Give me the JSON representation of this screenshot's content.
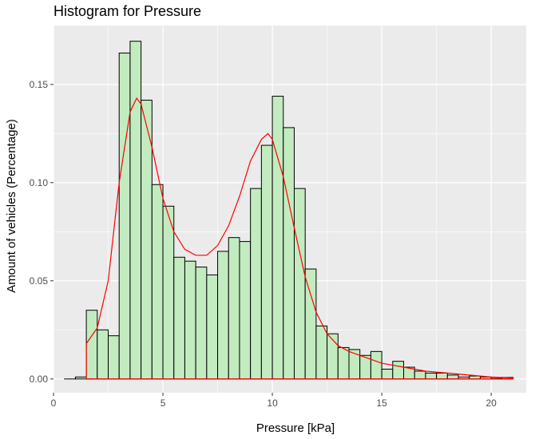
{
  "chart_data": {
    "type": "bar",
    "title": "Histogram for Pressure",
    "xlabel": "Pressure [kPa]",
    "ylabel": "Amount of vehicles (Percentage)",
    "xlim": [
      0,
      21.6
    ],
    "ylim": [
      -0.007,
      0.18
    ],
    "x_ticks": [
      0,
      5,
      10,
      15,
      20
    ],
    "x_tick_labels": [
      "0",
      "5",
      "10",
      "15",
      "20"
    ],
    "y_ticks": [
      0,
      0.05,
      0.1,
      0.15
    ],
    "y_tick_labels": [
      "0.00",
      "0.05",
      "0.10",
      "0.15"
    ],
    "grid": true,
    "bin_width": 0.5,
    "bin_left_edges": [
      0.5,
      1.0,
      1.5,
      2.0,
      2.5,
      3.0,
      3.5,
      4.0,
      4.5,
      5.0,
      5.5,
      6.0,
      6.5,
      7.0,
      7.5,
      8.0,
      8.5,
      9.0,
      9.5,
      10.0,
      10.5,
      11.0,
      11.5,
      12.0,
      12.5,
      13.0,
      13.5,
      14.0,
      14.5,
      15.0,
      15.5,
      16.0,
      16.5,
      17.0,
      17.5,
      18.0,
      18.5,
      19.0,
      19.5,
      20.0,
      20.5
    ],
    "values": [
      0.0,
      0.001,
      0.035,
      0.025,
      0.022,
      0.166,
      0.172,
      0.142,
      0.099,
      0.088,
      0.062,
      0.06,
      0.057,
      0.053,
      0.065,
      0.072,
      0.07,
      0.097,
      0.119,
      0.144,
      0.128,
      0.097,
      0.056,
      0.027,
      0.023,
      0.016,
      0.015,
      0.012,
      0.014,
      0.005,
      0.009,
      0.006,
      0.004,
      0.003,
      0.003,
      0.002,
      0.001,
      0.0015,
      0.001,
      0.0003,
      0.0008
    ],
    "density_curve": {
      "color": "#ff0000",
      "x": [
        1.5,
        2.0,
        2.5,
        3.0,
        3.5,
        3.8,
        4.0,
        4.5,
        5.0,
        5.5,
        6.0,
        6.5,
        7.0,
        7.5,
        8.0,
        8.5,
        9.0,
        9.5,
        9.8,
        10.0,
        10.5,
        11.0,
        11.5,
        12.0,
        12.5,
        13.0,
        13.5,
        14.0,
        14.5,
        15.0,
        15.5,
        16.0,
        16.5,
        17.0,
        18.0,
        19.0,
        20.0,
        21.0
      ],
      "y": [
        0.018,
        0.026,
        0.05,
        0.1,
        0.136,
        0.143,
        0.14,
        0.118,
        0.092,
        0.075,
        0.066,
        0.063,
        0.063,
        0.068,
        0.078,
        0.093,
        0.111,
        0.122,
        0.125,
        0.122,
        0.103,
        0.077,
        0.052,
        0.034,
        0.023,
        0.017,
        0.014,
        0.012,
        0.01,
        0.008,
        0.007,
        0.006,
        0.005,
        0.004,
        0.003,
        0.002,
        0.001,
        0.0005
      ]
    },
    "colors": {
      "bar_fill": "#c3ebc0",
      "bar_stroke": "#000000",
      "panel_background": "#ebebeb",
      "grid": "#ffffff"
    }
  }
}
